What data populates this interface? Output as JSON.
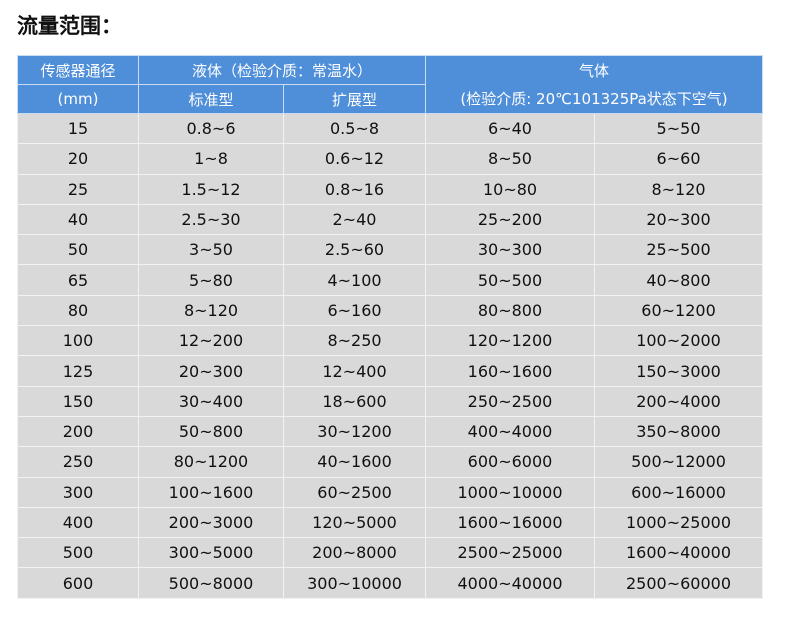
{
  "title": "流量范围：",
  "header": {
    "diameter": "传感器通径",
    "diameter_unit": "(mm)",
    "liquid": "液体（检验介质：常温水）",
    "liquid_standard": "标准型",
    "liquid_extended": "扩展型",
    "gas": "气体",
    "gas_medium": "(检验介质: 20℃101325Pa状态下空气)"
  },
  "rows": [
    [
      "15",
      "0.8~6",
      "0.5~8",
      "6~40",
      "5~50"
    ],
    [
      "20",
      "1~8",
      "0.6~12",
      "8~50",
      "6~60"
    ],
    [
      "25",
      "1.5~12",
      "0.8~16",
      "10~80",
      "8~120"
    ],
    [
      "40",
      "2.5~30",
      "2~40",
      "25~200",
      "20~300"
    ],
    [
      "50",
      "3~50",
      "2.5~60",
      "30~300",
      "25~500"
    ],
    [
      "65",
      "5~80",
      "4~100",
      "50~500",
      "40~800"
    ],
    [
      "80",
      "8~120",
      "6~160",
      "80~800",
      "60~1200"
    ],
    [
      "100",
      "12~200",
      "8~250",
      "120~1200",
      "100~2000"
    ],
    [
      "125",
      "20~300",
      "12~400",
      "160~1600",
      "150~3000"
    ],
    [
      "150",
      "30~400",
      "18~600",
      "250~2500",
      "200~4000"
    ],
    [
      "200",
      "50~800",
      "30~1200",
      "400~4000",
      "350~8000"
    ],
    [
      "250",
      "80~1200",
      "40~1600",
      "600~6000",
      "500~12000"
    ],
    [
      "300",
      "100~1600",
      "60~2500",
      "1000~10000",
      "600~16000"
    ],
    [
      "400",
      "200~3000",
      "120~5000",
      "1600~16000",
      "1000~25000"
    ],
    [
      "500",
      "300~5000",
      "200~8000",
      "2500~25000",
      "1600~40000"
    ],
    [
      "600",
      "500~8000",
      "300~10000",
      "4000~40000",
      "2500~60000"
    ]
  ]
}
